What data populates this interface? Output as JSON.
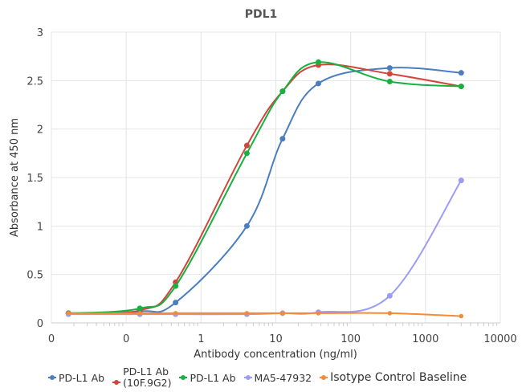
{
  "chart_data": {
    "type": "line",
    "title": "PDL1",
    "xlabel": "Antibody concentration (ng/ml)",
    "ylabel": "Absorbance at 450 nm",
    "x_scale": "log",
    "xlim": [
      0.01,
      10000
    ],
    "ylim": [
      0,
      3
    ],
    "x_tick_values": [
      0.01,
      0.1,
      1,
      10,
      100,
      1000,
      10000
    ],
    "x_tick_labels": [
      "0",
      "0",
      "1",
      "10",
      "100",
      "1000",
      "10000"
    ],
    "y_tick_labels": [
      "0",
      "0.5",
      "1",
      "1.5",
      "2",
      "2.5",
      "3"
    ],
    "grid": true,
    "smoothed": true,
    "legend_position": "bottom",
    "x": [
      0.0169,
      0.152,
      0.457,
      4.1,
      12.3,
      37,
      333,
      3000
    ],
    "series": [
      {
        "name": "PD-L1 Ab",
        "color": "#4a7ebf",
        "values": [
          0.1,
          0.12,
          0.21,
          1.0,
          1.9,
          2.47,
          2.63,
          2.58
        ]
      },
      {
        "name": "PD-L1 Ab (10F.9G2)",
        "name_lines": [
          "PD-L1 Ab",
          "(10F.9G2)"
        ],
        "color": "#d0463c",
        "values": [
          0.1,
          0.13,
          0.42,
          1.83,
          2.39,
          2.66,
          2.57,
          2.44
        ]
      },
      {
        "name": "PD-L1 Ab",
        "color": "#17b13f",
        "values": [
          0.1,
          0.15,
          0.38,
          1.75,
          2.39,
          2.69,
          2.49,
          2.44
        ]
      },
      {
        "name": "MA5-47932",
        "color": "#9b9cf5",
        "values": [
          0.09,
          0.09,
          0.09,
          0.09,
          0.1,
          0.11,
          0.28,
          1.47
        ]
      },
      {
        "name": "Isotype Control Baseline",
        "color": "#f58b35",
        "values": [
          0.1,
          0.1,
          0.1,
          0.1,
          0.1,
          0.1,
          0.1,
          0.07
        ]
      }
    ]
  }
}
